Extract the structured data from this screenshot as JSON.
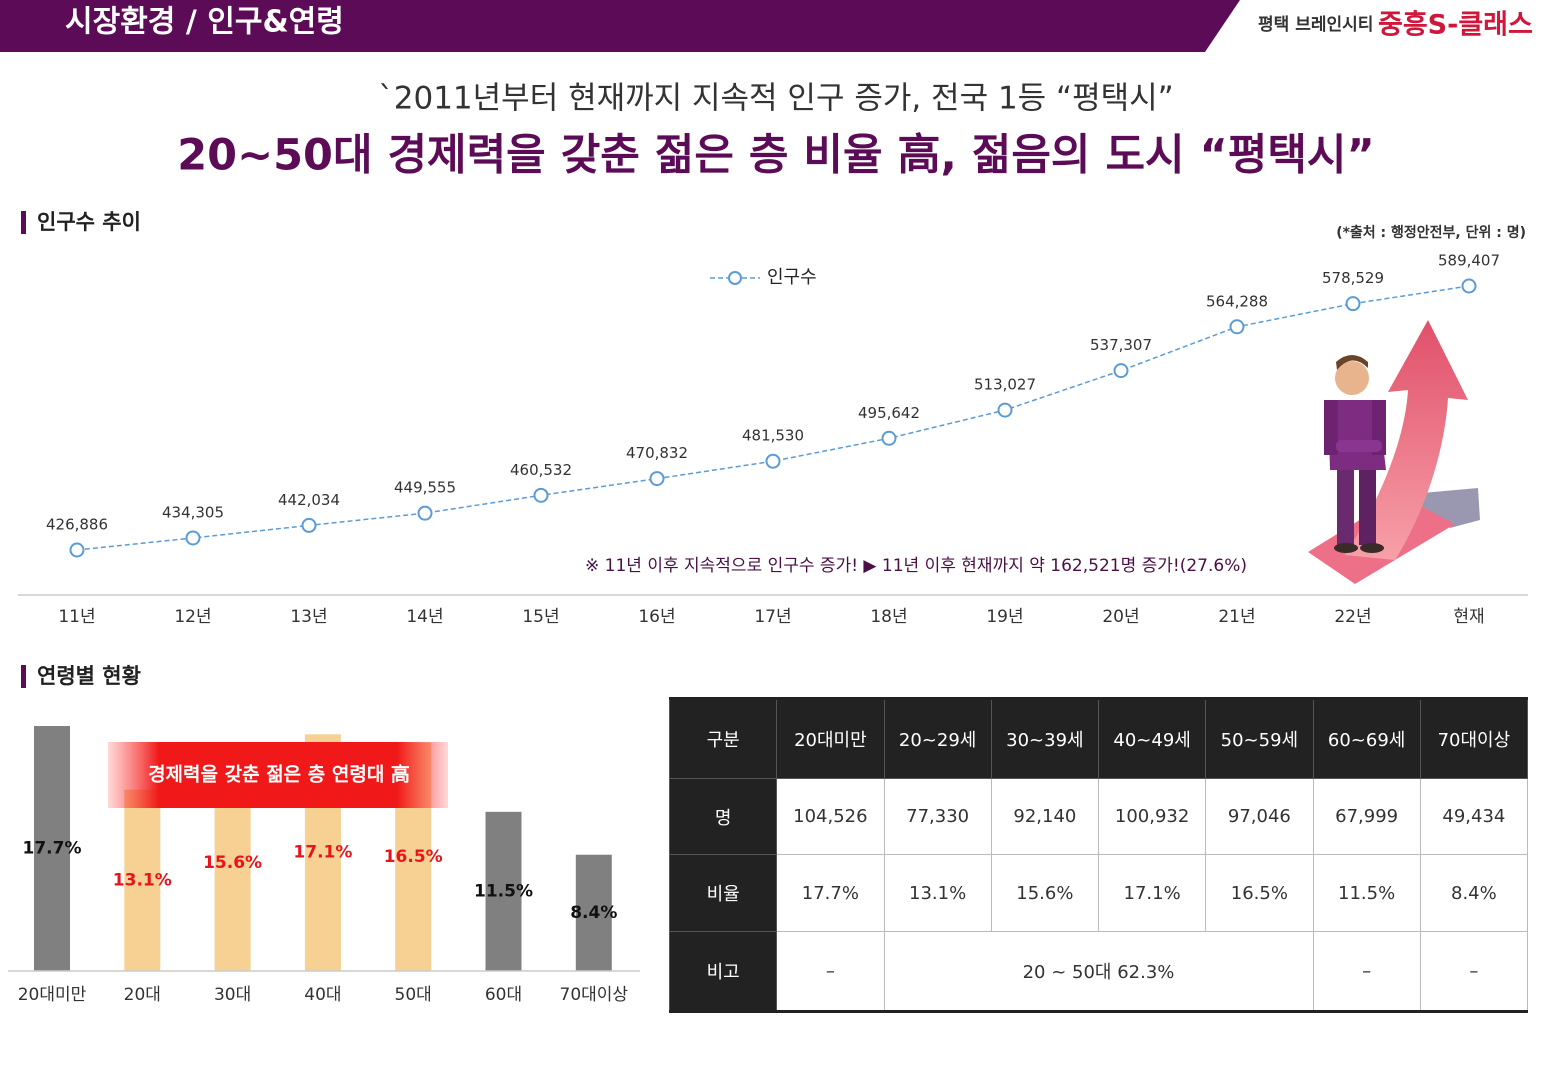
{
  "header": {
    "section": "시장환경 / 인구&연령",
    "brand_sub": "평택 브레인시티",
    "brand": "중흥S-클래스"
  },
  "headline": {
    "line1": "`2011년부터 현재까지 지속적 인구 증가, 전국 1등 “평택시”",
    "line2": "20~50대 경제력을 갖춘 젊은 층 비율 高, 젊음의 도시 “평택시”"
  },
  "chart_data": [
    {
      "type": "line",
      "title": "인구수 추이",
      "source": "(*출처 : 행정안전부, 단위 : 명)",
      "categories": [
        "11년",
        "12년",
        "13년",
        "14년",
        "15년",
        "16년",
        "17년",
        "18년",
        "19년",
        "20년",
        "21년",
        "22년",
        "현재"
      ],
      "series": [
        {
          "name": "인구수",
          "color": "#5b9bd5",
          "values": [
            426886,
            434305,
            442034,
            449555,
            460532,
            470832,
            481530,
            495642,
            513027,
            537307,
            564288,
            578529,
            589407
          ],
          "value_labels": [
            "426,886",
            "434,305",
            "442,034",
            "449,555",
            "460,532",
            "470,832",
            "481,530",
            "495,642",
            "513,027",
            "537,307",
            "564,288",
            "578,529",
            "589,407"
          ]
        }
      ],
      "annotation": "※ 11년 이후 지속적으로 인구수 증가! ▶ 11년 이후 현재까지 약 162,521명 증가!(27.6%)"
    },
    {
      "type": "bar",
      "title": "연령별 현황",
      "categories": [
        "20대미만",
        "20대",
        "30대",
        "40대",
        "50대",
        "60대",
        "70대이상"
      ],
      "values": [
        17.7,
        13.1,
        15.6,
        17.1,
        16.5,
        11.5,
        8.4
      ],
      "value_labels": [
        "17.7%",
        "13.1%",
        "15.6%",
        "17.1%",
        "16.5%",
        "11.5%",
        "8.4%"
      ],
      "colors": [
        "#808080",
        "#f6d193",
        "#f6d193",
        "#f6d193",
        "#f6d193",
        "#808080",
        "#808080"
      ],
      "value_label_colors": [
        "#111111",
        "#e8141c",
        "#e8141c",
        "#e8141c",
        "#e8141c",
        "#111111",
        "#111111"
      ],
      "annotation": "경제력을 갖춘 젊은 층 연령대 高"
    }
  ],
  "table": {
    "header": [
      "구분",
      "20대미만",
      "20~29세",
      "30~39세",
      "40~49세",
      "50~59세",
      "60~69세",
      "70대이상"
    ],
    "rows": [
      [
        "명",
        "104,526",
        "77,330",
        "92,140",
        "100,932",
        "97,046",
        "67,999",
        "49,434"
      ],
      [
        "비율",
        "17.7%",
        "13.1%",
        "15.6%",
        "17.1%",
        "16.5%",
        "11.5%",
        "8.4%"
      ],
      [
        "비고",
        "–",
        "20 ~ 50대 62.3%",
        "–",
        "–"
      ]
    ]
  }
}
